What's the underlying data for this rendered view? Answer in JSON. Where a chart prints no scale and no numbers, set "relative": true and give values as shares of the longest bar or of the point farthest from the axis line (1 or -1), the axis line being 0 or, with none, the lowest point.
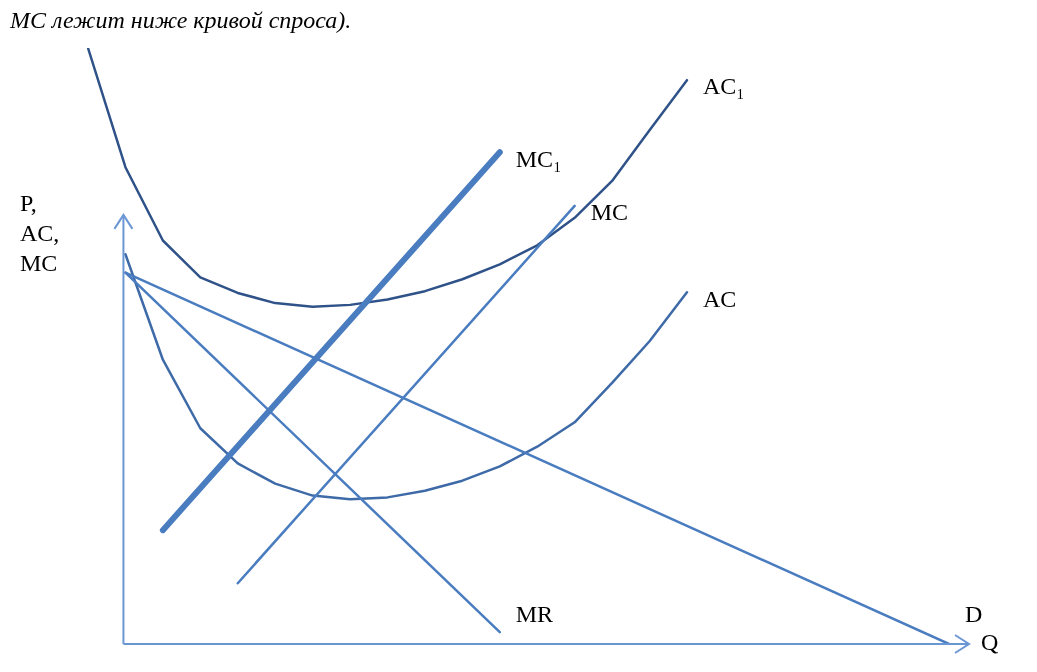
{
  "chart_data": {
    "type": "line",
    "relative": true,
    "xlabel": "Q",
    "ylabel": "P,\nAC,\nMC",
    "annotations": [
      "МС лежит ниже кривой спроса)."
    ],
    "legend": false,
    "marker": "none",
    "line_style": "solid",
    "categories": [
      null,
      null,
      null,
      null,
      null,
      null,
      null,
      null,
      null,
      null,
      null,
      null,
      null,
      null,
      null,
      null,
      null,
      null,
      null,
      null,
      null,
      null,
      null,
      null
    ],
    "series": [
      {
        "name": "D",
        "color": "#4a7cc0",
        "values": [
          null,
          0.623,
          null,
          null,
          null,
          null,
          null,
          null,
          null,
          null,
          null,
          null,
          null,
          null,
          null,
          null,
          null,
          null,
          null,
          null,
          null,
          null,
          null,
          0
        ]
      },
      {
        "name": "MR",
        "color": "#4a7cc0",
        "values": [
          null,
          0.623,
          null,
          null,
          null,
          null,
          null,
          null,
          null,
          null,
          null,
          0.02,
          null,
          null,
          null,
          null,
          null,
          null,
          null,
          null,
          null,
          null,
          null,
          null
        ]
      },
      {
        "name": "MC₁",
        "color": "#4a7cc0",
        "values": [
          null,
          null,
          0.191,
          null,
          null,
          null,
          null,
          null,
          null,
          null,
          null,
          0.825,
          null,
          null,
          null,
          null,
          null,
          null,
          null,
          null,
          null,
          null,
          null,
          null
        ]
      },
      {
        "name": "MC",
        "color": "#4a7cc0",
        "values": [
          null,
          null,
          null,
          null,
          0.102,
          null,
          null,
          null,
          null,
          null,
          null,
          null,
          null,
          0.735,
          null,
          null,
          null,
          null,
          null,
          null,
          null,
          null,
          null,
          null
        ]
      },
      {
        "name": "AC",
        "color": "#3e6aa8",
        "values": [
          null,
          0.654,
          0.477,
          0.362,
          0.303,
          0.269,
          0.249,
          0.243,
          0.246,
          0.257,
          0.274,
          0.298,
          0.331,
          0.372,
          0.438,
          0.508,
          0.59,
          null,
          null,
          null,
          null,
          null,
          null,
          null
        ]
      },
      {
        "name": "AC₁",
        "color": "#2f5288",
        "values": [
          1.0,
          0.8,
          0.677,
          0.615,
          0.589,
          0.572,
          0.566,
          0.569,
          0.578,
          0.592,
          0.612,
          0.637,
          0.669,
          0.715,
          0.777,
          0.862,
          0.946,
          null,
          null,
          null,
          null,
          null,
          null,
          null
        ]
      }
    ]
  }
}
